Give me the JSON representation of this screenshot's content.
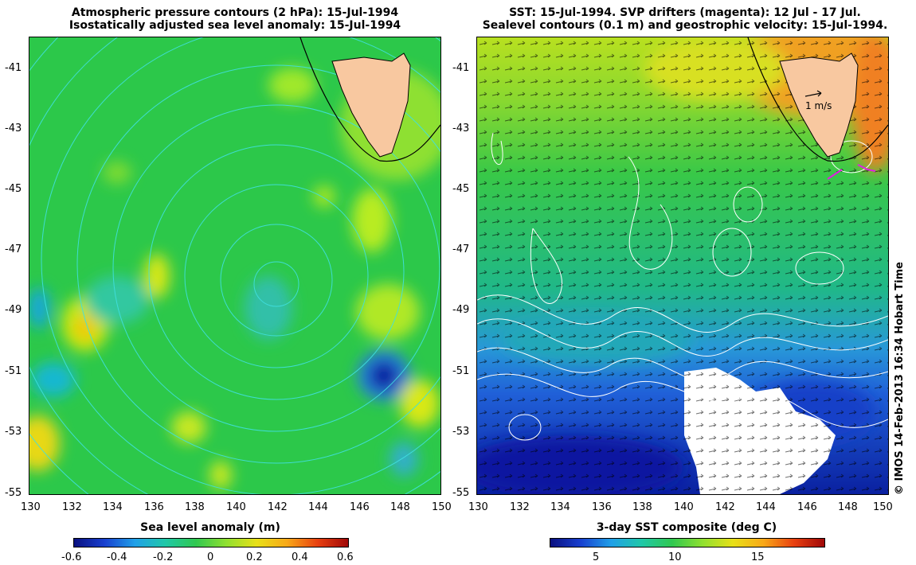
{
  "left": {
    "title_line1": "Atmospheric pressure contours (2 hPa): 15-Jul-1994",
    "title_line2": "Isostatically adjusted sea level anomaly: 15-Jul-1994",
    "colorbar": {
      "label": "Sea level anomaly (m)",
      "ticks": [
        "-0.6",
        "-0.4",
        "-0.2",
        "0",
        "0.2",
        "0.4",
        "0.6"
      ],
      "range": [
        -0.6,
        0.6
      ]
    }
  },
  "right": {
    "title_line1": "SST: 15-Jul-1994. SVP drifters (magenta): 12 Jul - 17 Jul.",
    "title_line2": "Sealevel contours (0.1 m) and geostrophic velocity: 15-Jul-1994.",
    "scale_arrow_label": "1 m/s",
    "colorbar": {
      "label": "3-day SST composite (deg C)",
      "ticks": [
        "5",
        "10",
        "15"
      ],
      "range": [
        2,
        19
      ]
    }
  },
  "axes": {
    "lat_ticks": [
      "-41",
      "-43",
      "-45",
      "-47",
      "-49",
      "-51",
      "-53",
      "-55"
    ],
    "lon_ticks": [
      "130",
      "132",
      "134",
      "136",
      "138",
      "140",
      "142",
      "144",
      "146",
      "148",
      "150"
    ],
    "lat_range": [
      -55,
      -40.2
    ],
    "lon_range": [
      130,
      150
    ]
  },
  "credit": "© IMOS 14-Feb-2013 16:34 Hobart Time",
  "colors": {
    "land": "#f8c8a0",
    "drifter": "#e020e0",
    "contour_left": "#40e0e0",
    "contour_right": "#ffffff"
  }
}
